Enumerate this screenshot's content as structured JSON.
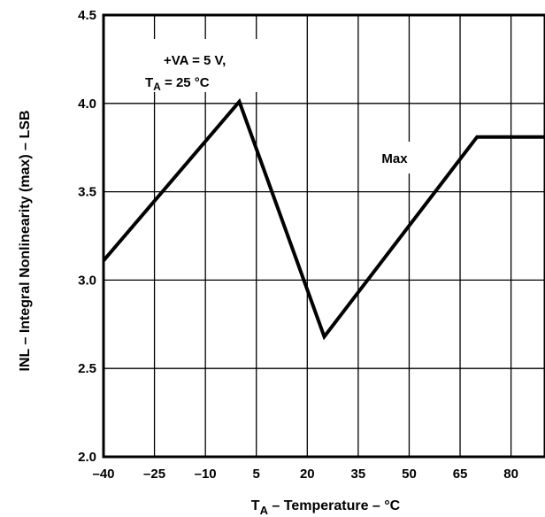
{
  "chart_data": {
    "type": "line",
    "title": "",
    "xlabel": {
      "main": "T",
      "sub": "A",
      "rest": " – Temperature – °C"
    },
    "ylabel": "INL – Integral Nonlinearity (max) – LSB",
    "xlim": [
      -40,
      90
    ],
    "ylim": [
      2.0,
      4.5
    ],
    "x_ticks": [
      -40,
      -25,
      -10,
      5,
      20,
      35,
      50,
      65,
      80
    ],
    "x_tick_labels": [
      "–40",
      "–25",
      "–10",
      "5",
      "20",
      "35",
      "50",
      "65",
      "80"
    ],
    "y_ticks": [
      2.0,
      2.5,
      3.0,
      3.5,
      4.0,
      4.5
    ],
    "y_tick_labels": [
      "2.0",
      "2.5",
      "3.0",
      "3.5",
      "4.0",
      "4.5"
    ],
    "grid": true,
    "series": [
      {
        "name": "Max",
        "color": "#000000",
        "x": [
          -40,
          0,
          25,
          70,
          90
        ],
        "y": [
          3.11,
          4.01,
          2.68,
          3.81,
          3.81
        ]
      }
    ],
    "annotations": {
      "condition_line1": "+VA = 5 V,",
      "condition_line2_main": "T",
      "condition_line2_sub": "A",
      "condition_line2_rest": " = 25 °C"
    }
  }
}
